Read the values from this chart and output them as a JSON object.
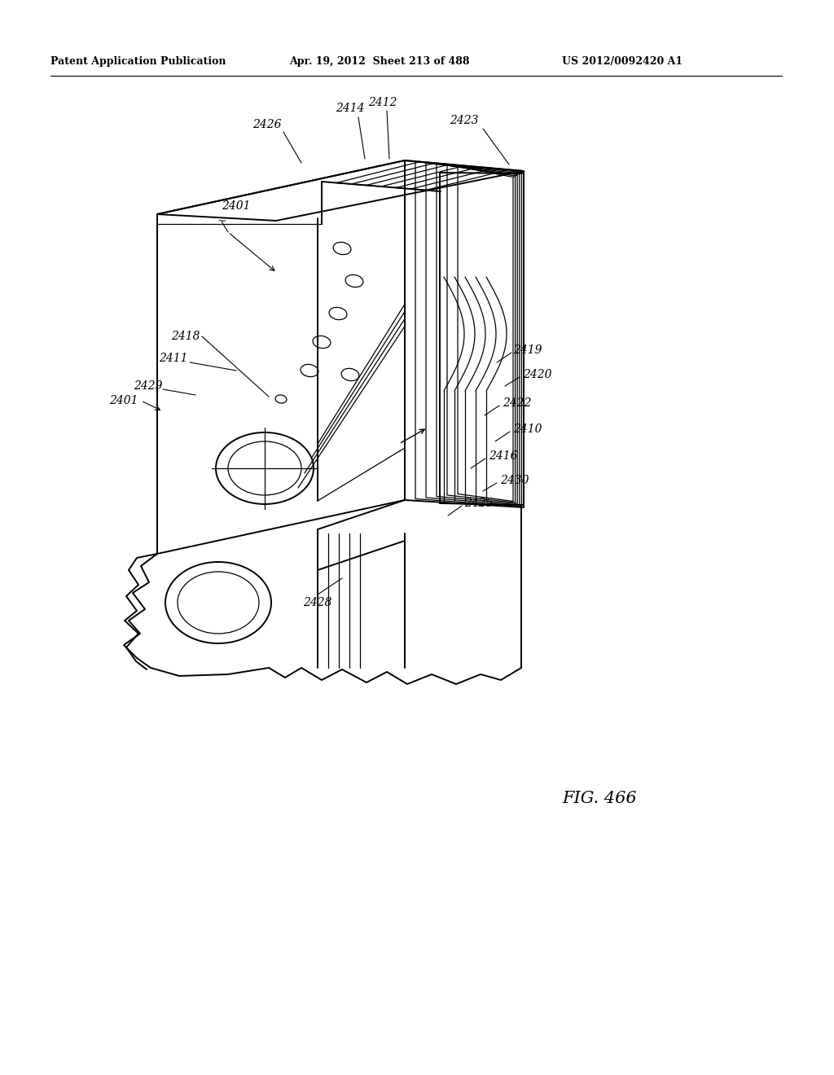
{
  "header_left": "Patent Application Publication",
  "header_mid": "Apr. 19, 2012  Sheet 213 of 488",
  "header_right": "US 2012/0092420 A1",
  "fig_label": "FIG. 466",
  "background_color": "#ffffff",
  "line_color": "#000000",
  "lw_main": 1.4,
  "lw_thin": 0.9,
  "lw_header": 0.8
}
